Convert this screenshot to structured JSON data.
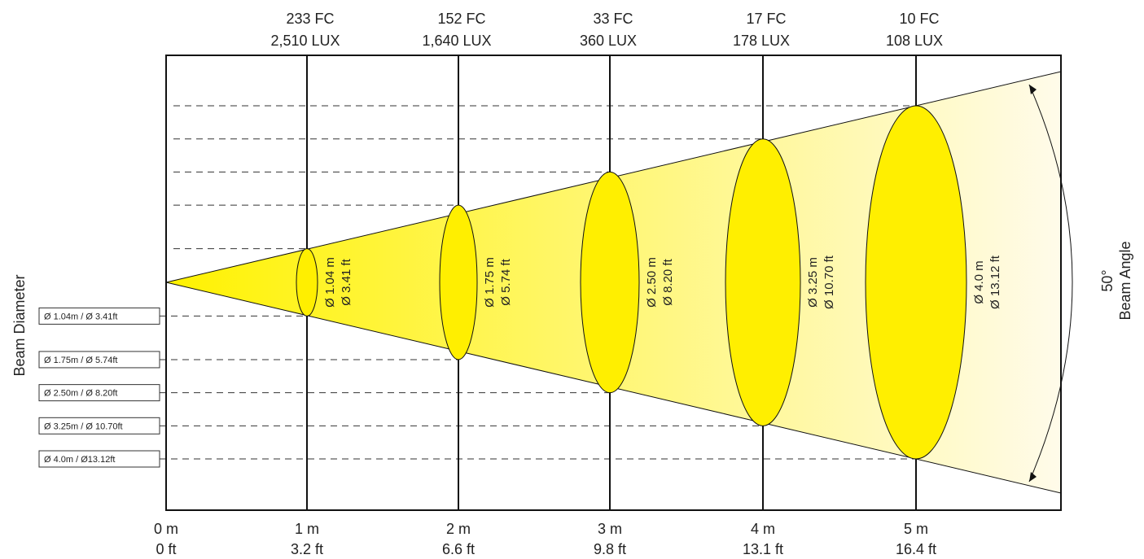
{
  "colors": {
    "beam_fill_start": "#FFF200",
    "beam_fill_end": "#FFFBEA",
    "ellipse_fill": "#FFEF00",
    "line": "#111111"
  },
  "axis_label": "Beam Diameter",
  "beam_angle": {
    "degrees": "50°",
    "label": "Beam Angle"
  },
  "origin": {
    "m_label": "0 m",
    "ft_label": "0 ft"
  },
  "distances": [
    {
      "m": 1,
      "m_label": "1 m",
      "ft_label": "3.2 ft",
      "fc": "233 FC",
      "lux": "2,510 LUX",
      "diam_m_val": 1.04,
      "diam_m": "Ø 1.04 m",
      "diam_ft": "Ø 3.41 ft",
      "legend": "Ø 1.04m / Ø 3.41ft"
    },
    {
      "m": 2,
      "m_label": "2 m",
      "ft_label": "6.6 ft",
      "fc": "152 FC",
      "lux": "1,640 LUX",
      "diam_m_val": 1.75,
      "diam_m": "Ø 1.75 m",
      "diam_ft": "Ø 5.74 ft",
      "legend": "Ø 1.75m / Ø 5.74ft"
    },
    {
      "m": 3,
      "m_label": "3 m",
      "ft_label": "9.8 ft",
      "fc": "33 FC",
      "lux": "360 LUX",
      "diam_m_val": 2.5,
      "diam_m": "Ø 2.50 m",
      "diam_ft": "Ø 8.20 ft",
      "legend": "Ø 2.50m / Ø 8.20ft"
    },
    {
      "m": 4,
      "m_label": "4 m",
      "ft_label": "13.1 ft",
      "fc": "17 FC",
      "lux": "178 LUX",
      "diam_m_val": 3.25,
      "diam_m": "Ø 3.25 m",
      "diam_ft": "Ø 10.70 ft",
      "legend": "Ø 3.25m / Ø 10.70ft"
    },
    {
      "m": 5,
      "m_label": "5 m",
      "ft_label": "16.4 ft",
      "fc": "10 FC",
      "lux": "108 LUX",
      "diam_m_val": 4.0,
      "diam_m": "Ø 4.0 m",
      "diam_ft": "Ø 13.12 ft",
      "legend": "Ø 4.0m / Ø13.12ft"
    }
  ]
}
